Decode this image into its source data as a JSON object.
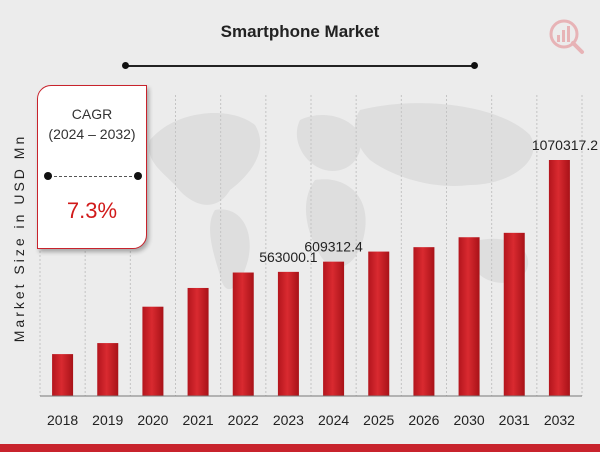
{
  "chart_data": {
    "type": "bar",
    "title": "Smartphone Market",
    "ylabel": "Market Size in USD Mn",
    "xlabel": "",
    "categories": [
      "2018",
      "2019",
      "2020",
      "2021",
      "2022",
      "2023",
      "2024",
      "2025",
      "2026",
      "2030",
      "2031",
      "2032"
    ],
    "values": [
      190000,
      240000,
      405000,
      490000,
      560000,
      563000.1,
      609312.4,
      655000,
      675000,
      720000,
      740000,
      1070317.2
    ],
    "data_labels": {
      "2023": "563000.1",
      "2024": "609312.4",
      "2032": "1070317.2"
    },
    "grid": false,
    "legend": "none",
    "bar_color": "#c8232c"
  },
  "cagr_box": {
    "heading": "CAGR",
    "range": "(2024 – 2032)",
    "value": "7.3%"
  },
  "colors": {
    "accent": "#c8232c",
    "background": "#ececec"
  },
  "icons": {
    "logo": "market-research-logo-icon"
  }
}
